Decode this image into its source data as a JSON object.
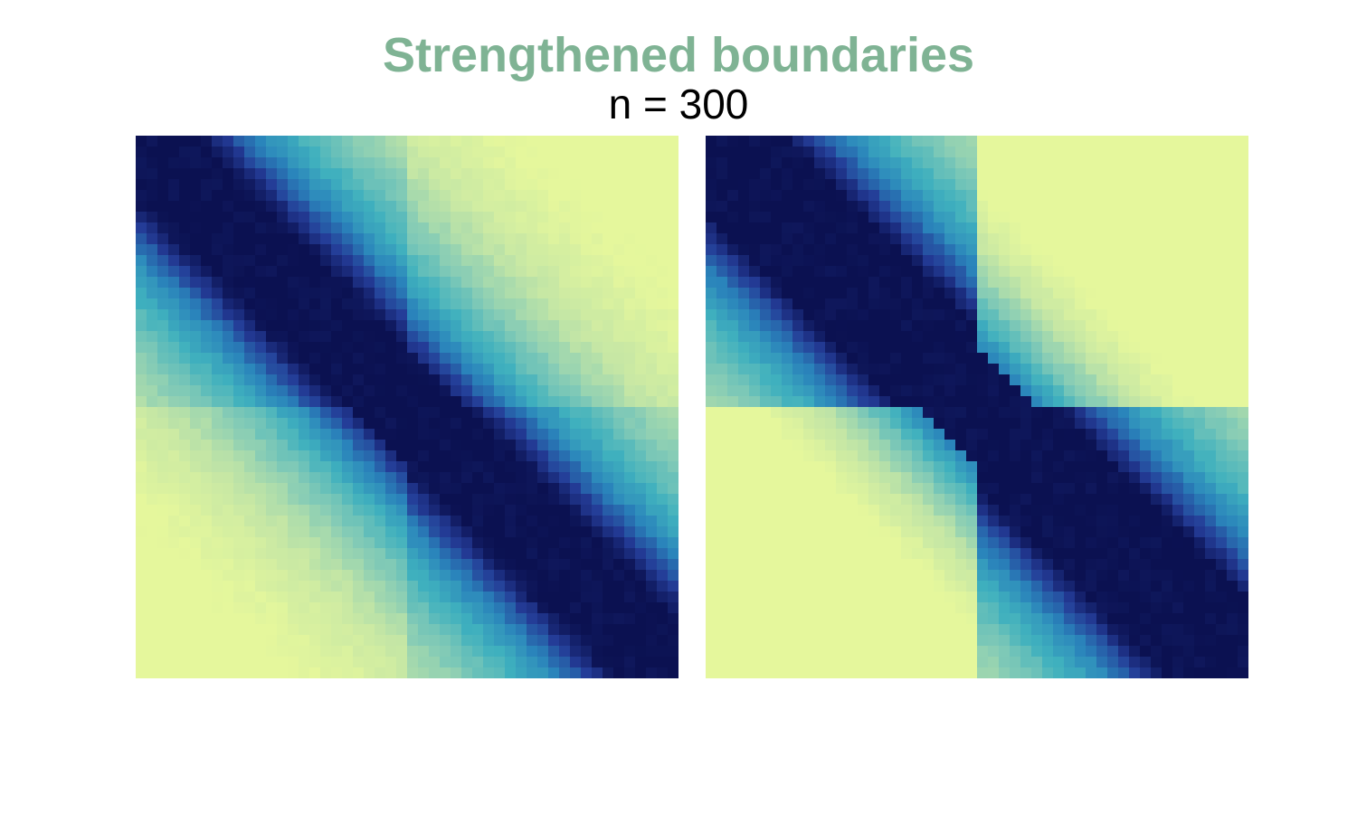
{
  "title": "Strengthened boundaries",
  "subtitle": "n = 300",
  "colors": {
    "title": "#7fb394",
    "colormap": [
      "#0b1151",
      "#243c97",
      "#2a84bb",
      "#3fb0be",
      "#84cbb6",
      "#c4e6a5",
      "#e5f79c"
    ]
  },
  "chart_data": [
    {
      "type": "heatmap",
      "name": "",
      "grid_size": 50,
      "boundary_bin": 25,
      "band_halfwidth": 5.5,
      "decay_length": 14,
      "boundary_strength": 0.0,
      "show_axes": false,
      "grid": false
    },
    {
      "type": "heatmap",
      "name": "",
      "grid_size": 50,
      "boundary_bin": 25,
      "band_halfwidth": 5.5,
      "decay_length": 14,
      "boundary_strength": 1.0,
      "show_axes": false,
      "grid": false
    }
  ]
}
